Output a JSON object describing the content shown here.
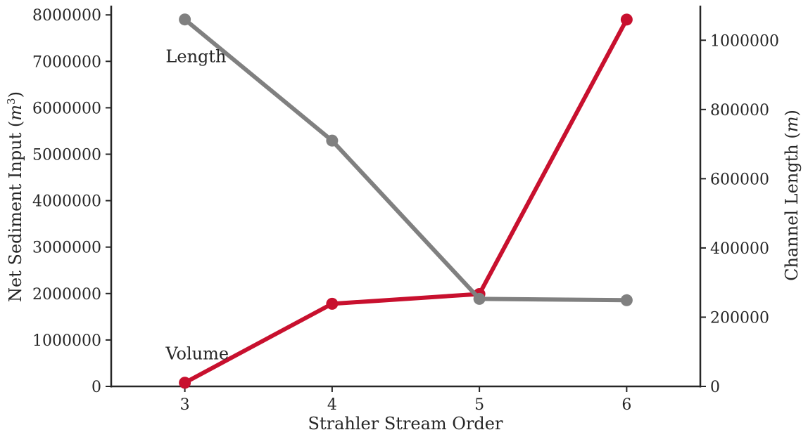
{
  "chart_data": {
    "type": "line",
    "x": [
      3,
      4,
      5,
      6
    ],
    "xlim": [
      2.5,
      6.5
    ],
    "xticks": [
      "3",
      "4",
      "5",
      "6"
    ],
    "xlabel": "Strahler Stream Order",
    "left_axis": {
      "label": "Net Sediment Input (m³)",
      "label_main": "Net Sediment Input (",
      "label_var": "m",
      "label_sup": "3",
      "label_close": ")",
      "ylim": [
        0,
        8200000
      ],
      "ticks": [
        0,
        1000000,
        2000000,
        3000000,
        4000000,
        5000000,
        6000000,
        7000000,
        8000000
      ]
    },
    "right_axis": {
      "label": "Channel Length (m)",
      "label_main": "Channel Length (",
      "label_var": "m",
      "label_close": ")",
      "ylim": [
        0,
        1100000
      ],
      "ticks": [
        0,
        200000,
        400000,
        600000,
        800000,
        1000000
      ]
    },
    "series": [
      {
        "name": "Volume",
        "axis": "left",
        "color": "#c8102e",
        "values": [
          80000,
          1780000,
          1990000,
          7900000
        ]
      },
      {
        "name": "Length",
        "axis": "right",
        "color": "#808080",
        "values": [
          1060000,
          710000,
          253000,
          249000
        ]
      }
    ],
    "annotations": [
      {
        "text": "Length",
        "x": 2.87,
        "y": 7100000,
        "axis": "left"
      },
      {
        "text": "Volume",
        "x": 2.87,
        "y": 700000,
        "axis": "left"
      }
    ],
    "grid": false
  }
}
